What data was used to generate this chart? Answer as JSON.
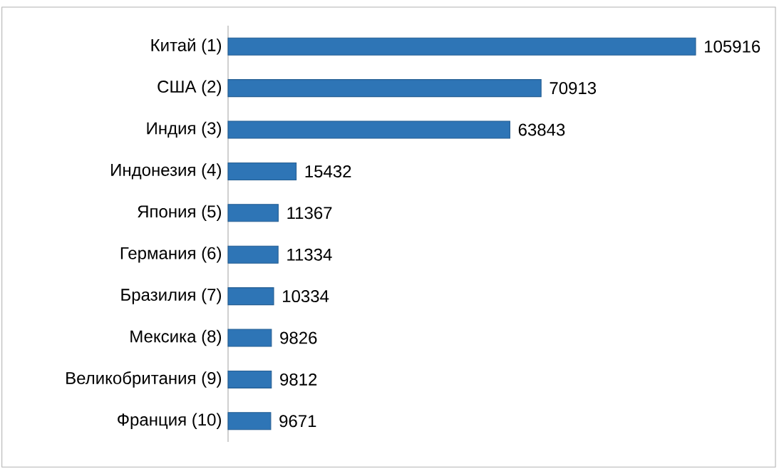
{
  "chart_data": {
    "type": "bar",
    "orientation": "horizontal",
    "categories": [
      "Китай (1)",
      "США (2)",
      "Индия (3)",
      "Индонезия (4)",
      "Япония (5)",
      "Германия (6)",
      "Бразилия (7)",
      "Мексика (8)",
      "Великобритания (9)",
      "Франция (10)"
    ],
    "values": [
      105916,
      70913,
      63843,
      15432,
      11367,
      11334,
      10334,
      9826,
      9812,
      9671
    ],
    "color": "#2e75b6",
    "data_labels": true
  }
}
